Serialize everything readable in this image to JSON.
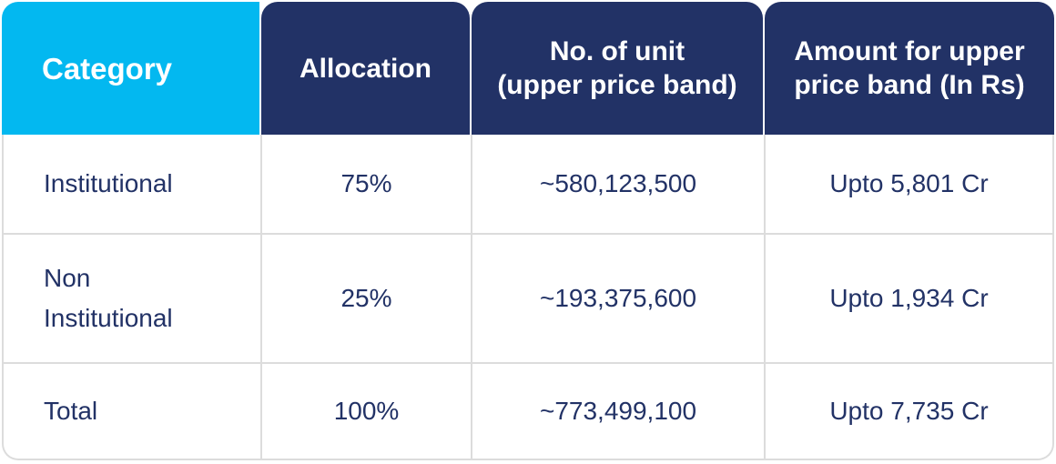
{
  "header": {
    "category": "Category",
    "allocation": "Allocation",
    "units_line1": "No. of unit",
    "units_line2": "(upper price band)",
    "amount_line1": "Amount for upper",
    "amount_line2": "price band (In Rs)"
  },
  "rows": [
    {
      "category_line1": "Institutional",
      "category_line2": "",
      "allocation": "75%",
      "units": "~580,123,500",
      "amount": "Upto 5,801 Cr"
    },
    {
      "category_line1": "Non",
      "category_line2": "Institutional",
      "allocation": "25%",
      "units": "~193,375,600",
      "amount": "Upto 1,934 Cr"
    },
    {
      "category_line1": "Total",
      "category_line2": "",
      "allocation": "100%",
      "units": "~773,499,100",
      "amount": "Upto 7,735 Cr"
    }
  ],
  "colors": {
    "category_header": "#03b8f0",
    "header": "#223266",
    "text": "#223266",
    "border": "#dcdcdc"
  }
}
